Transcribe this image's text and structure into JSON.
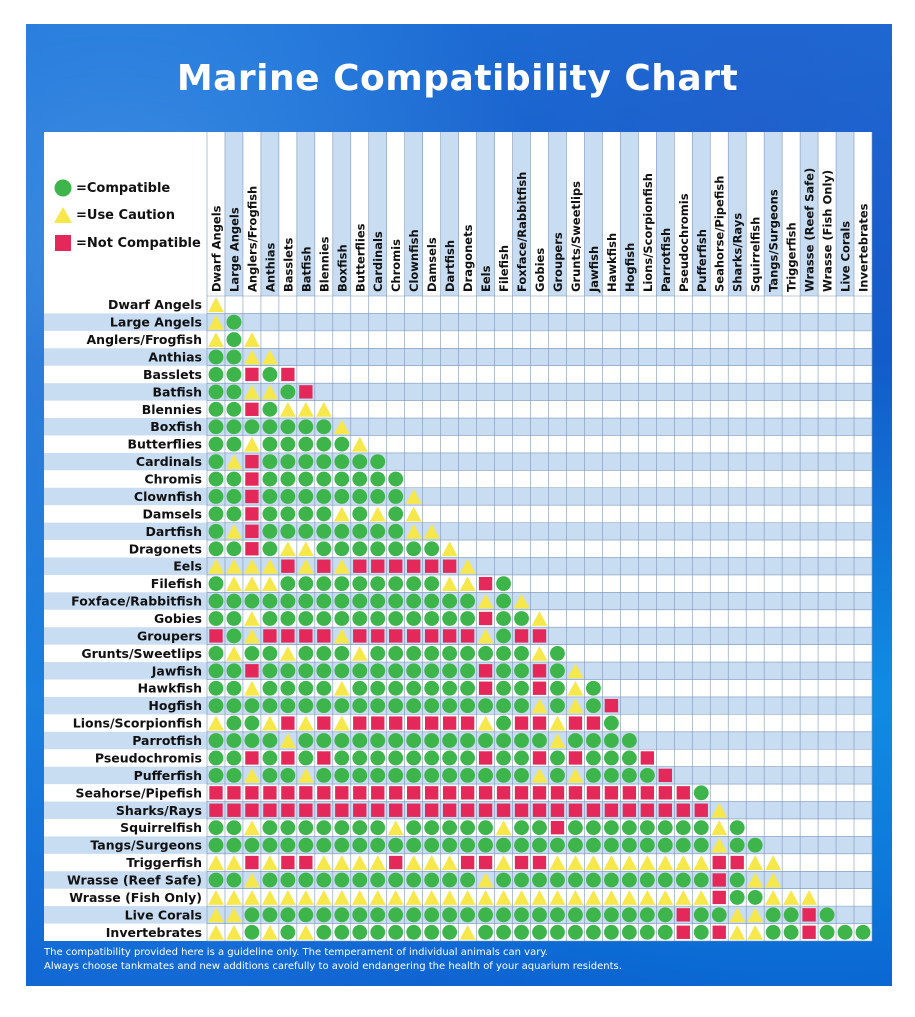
{
  "title": "Marine Compatibility Chart",
  "legend": {
    "compatible": "=Compatible",
    "caution": "=Use Caution",
    "not_compatible": "=Not Compatible"
  },
  "colors": {
    "compatible": "#3db54a",
    "caution": "#f6e84a",
    "not_compatible": "#e5285a",
    "row_shade": "#c8dcf2",
    "grid": "#7f97b8"
  },
  "footnote": {
    "line1": "The compatibility provided here is a guideline only. The temperament of individual animals can vary.",
    "line2": "Always choose tankmates and new additions carefully to avoid endangering the health of your aquarium residents."
  },
  "chart_data": {
    "type": "table",
    "title": "Marine Compatibility Chart",
    "legend_codes": {
      "C": "=Compatible",
      "Y": "=Use Caution",
      "X": "=Not Compatible"
    },
    "categories": [
      "Dwarf Angels",
      "Large Angels",
      "Anglers/Frogfish",
      "Anthias",
      "Basslets",
      "Batfish",
      "Blennies",
      "Boxfish",
      "Butterflies",
      "Cardinals",
      "Chromis",
      "Clownfish",
      "Damsels",
      "Dartfish",
      "Dragonets",
      "Eels",
      "Filefish",
      "Foxface/Rabbitfish",
      "Gobies",
      "Groupers",
      "Grunts/Sweetlips",
      "Jawfish",
      "Hawkfish",
      "Hogfish",
      "Lions/Scorpionfish",
      "Parrotfish",
      "Pseudochromis",
      "Pufferfish",
      "Seahorse/Pipefish",
      "Sharks/Rays",
      "Squirrelfish",
      "Tangs/Surgeons",
      "Triggerfish",
      "Wrasse (Reef Safe)",
      "Wrasse (Fish Only)",
      "Live Corals",
      "Invertebrates"
    ],
    "matrix": [
      "Y",
      "YC",
      "YCY",
      "CCYY",
      "CCXCX",
      "CCYYCX",
      "CCXCYYY",
      "CCCCCCCY",
      "CCYCCCCCY",
      "CYXCCCCCCC",
      "CCXCCCCCCCC",
      "CCXCCCCCCCCY",
      "CCXCCCCYCYCY",
      "CYXCCCCCCCCYY",
      "CCXCYYCCCCCCCY",
      "YYYYXYXYXXXXXXY",
      "CYYYCCCCCCCCCYYXC",
      "CCCCCCCCCCCCCCCYCY",
      "CCYCCCCCCCCCCCCXCCY",
      "XCYXXXXYXXXXXXXYCXX",
      "CYCCYCCCYCCCCCCCCCYC",
      "CCXCCCCCCCCCCCCXCCXCY",
      "CCYCCCCYCCCCCCCXCCXCYC",
      "CCCCCCCCCCCCCCCCCCYCYCX",
      "YCCYXYXYXXXXXXXYCXXYXXC",
      "CCCCYCCCCCCCCCCCCCCYCCCC",
      "CCXCXCXCCCCCCCCXCCXCXCCCX",
      "CCYCCYCCCCCCCCCCCCYCYCCCCX",
      "XXXXXXXXXXXXXXXXXXXXXXXXXXXC",
      "XXXXXXXXXXXXXXXXXXXXXXXXXXXXY",
      "CCYCCCCCCCYCCCCCYCCXCCCCCCCCYC",
      "CCCCCCCCCCCCCCCCCCCCCCCCCCCCYCC",
      "YYXYXXYYYYXYYYXXYXXYYYYYYYYYXXYY",
      "CCYCCCCCCCCCCCCYCCCCCCCCCCCCXCYY",
      "YYYYYYYYYYYYYYYYYYYYYYYYYYYYXCCYYY",
      "YYCCCCCCCCCCCCCCCCCCCCCCCCXCCYYCCXC",
      "YYCYCYCCCCCCCCYCCCCCCCCCCCXCXYYCCXCCC"
    ]
  }
}
